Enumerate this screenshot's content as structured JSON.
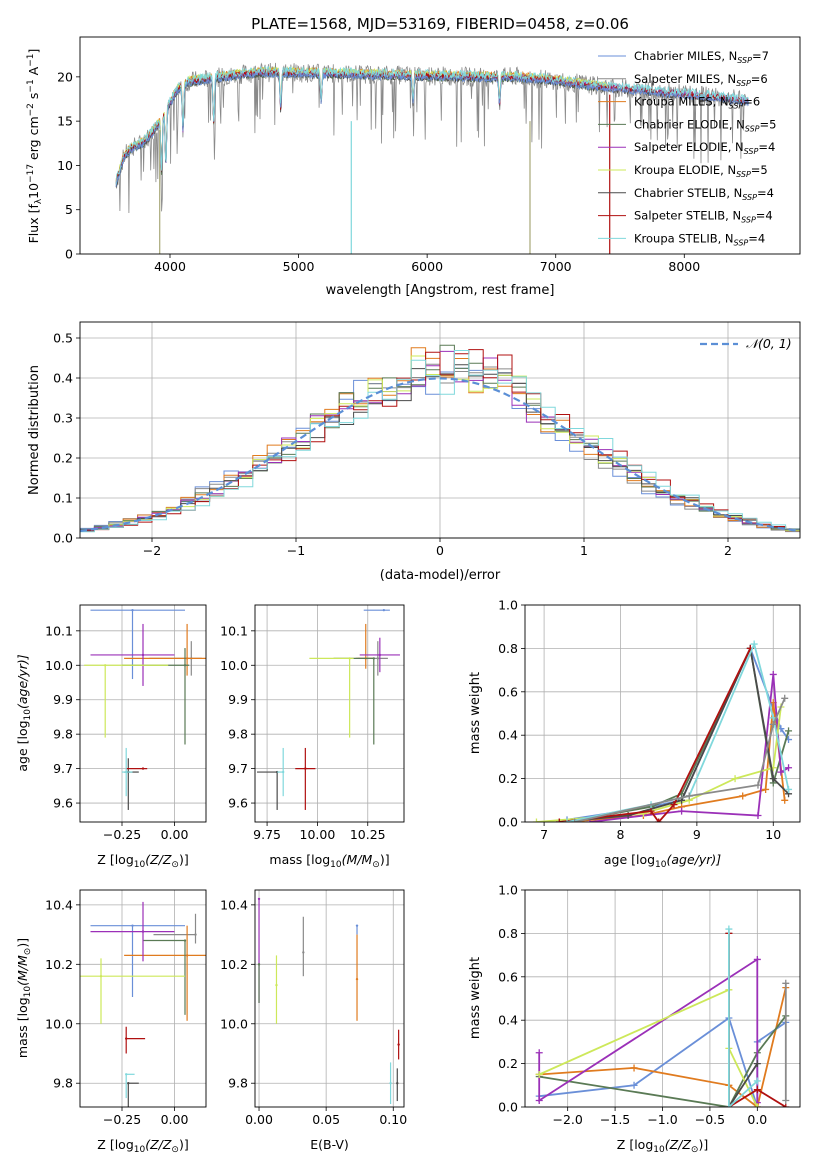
{
  "title": "PLATE=1568, MJD=53169, FIBERID=0458, z=0.06",
  "series": [
    {
      "name": "Chabrier MILES",
      "nssp": "7",
      "color": "#6a8fd8"
    },
    {
      "name": "Salpeter MILES",
      "nssp": "6",
      "color": "#8a8a8a"
    },
    {
      "name": "Kroupa MILES",
      "nssp": "6",
      "color": "#e07b1f"
    },
    {
      "name": "Chabrier ELODIE",
      "nssp": "5",
      "color": "#5a7a55"
    },
    {
      "name": "Salpeter ELODIE",
      "nssp": "4",
      "color": "#9b30b8"
    },
    {
      "name": "Kroupa ELODIE",
      "nssp": "5",
      "color": "#cde85a"
    },
    {
      "name": "Chabrier STELIB",
      "nssp": "4",
      "color": "#4a4a4a"
    },
    {
      "name": "Salpeter STELIB",
      "nssp": "4",
      "color": "#b01010"
    },
    {
      "name": "Kroupa STELIB",
      "nssp": "4",
      "color": "#80d8dc"
    }
  ],
  "nssp_label": "N",
  "nssp_sub": "SSP",
  "chart_data": [
    {
      "id": "spectrum",
      "type": "line",
      "xlabel": "wavelength [Angstrom, rest frame]",
      "ylabel_parts": [
        "Flux [f",
        "λ",
        "10",
        "−17",
        " erg cm",
        "−2",
        " s",
        "−1",
        " A",
        "−1",
        "]"
      ],
      "xlim": [
        3300,
        8900
      ],
      "ylim": [
        0,
        24.5
      ],
      "xticks": [
        4000,
        5000,
        6000,
        7000,
        8000
      ],
      "yticks": [
        0,
        5,
        10,
        15,
        20
      ],
      "continuum": [
        [
          3580,
          8
        ],
        [
          3640,
          11
        ],
        [
          3700,
          12
        ],
        [
          3780,
          12.5
        ],
        [
          3850,
          13.5
        ],
        [
          3920,
          15
        ],
        [
          3980,
          16.5
        ],
        [
          4050,
          18.5
        ],
        [
          4150,
          19.5
        ],
        [
          4300,
          19.8
        ],
        [
          4500,
          20.2
        ],
        [
          4700,
          20.5
        ],
        [
          4900,
          20.5
        ],
        [
          5200,
          20.4
        ],
        [
          5500,
          20.3
        ],
        [
          5800,
          20.2
        ],
        [
          6100,
          20.1
        ],
        [
          6400,
          20.0
        ],
        [
          6700,
          20.0
        ],
        [
          7000,
          19.6
        ],
        [
          7300,
          19.0
        ],
        [
          7600,
          18.6
        ],
        [
          7900,
          18.2
        ],
        [
          8200,
          17.8
        ],
        [
          8500,
          17.3
        ]
      ],
      "dips": [
        [
          3934,
          6
        ],
        [
          3968,
          6
        ],
        [
          4101,
          5
        ],
        [
          4340,
          5
        ],
        [
          4861,
          4
        ],
        [
          5175,
          3
        ],
        [
          5890,
          3
        ],
        [
          6563,
          3
        ]
      ],
      "spikes": [
        [
          3920,
          0,
          14
        ],
        [
          5410,
          0,
          15
        ],
        [
          6800,
          0,
          15
        ],
        [
          7420,
          0,
          18
        ]
      ],
      "grid": false,
      "legend": "upper-right"
    },
    {
      "id": "residuals",
      "type": "histogram",
      "xlabel": "(data-model)/error",
      "ylabel": "Normed distribution",
      "xlim": [
        -2.5,
        2.5
      ],
      "ylim": [
        0,
        0.54
      ],
      "xticks": [
        -2,
        -1,
        0,
        1,
        2
      ],
      "yticks": [
        0,
        0.1,
        0.2,
        0.3,
        0.4,
        0.5
      ],
      "reference": "𝒩(0, 1)",
      "bin_width": 0.1,
      "grid": true,
      "legend": "upper-right"
    },
    {
      "id": "age-vs-z",
      "type": "scatter",
      "xlabel_main": "Z [log",
      "xlabel_tail": "(Z/Z",
      "xlabel_end": ")]",
      "ylabel": "age  [log",
      "ylabel_tail": "(age/yr)]",
      "xlim": [
        -0.45,
        0.15
      ],
      "ylim": [
        9.545,
        10.175
      ],
      "xticks": [
        -0.25,
        0.0
      ],
      "yticks": [
        9.6,
        9.7,
        9.8,
        9.9,
        10.0,
        10.1
      ],
      "points": [
        {
          "x": -0.2,
          "y": 10.16,
          "xerr": [
            0.2,
            0.25
          ],
          "yerr": [
            0.2,
            0.0
          ],
          "series": 0
        },
        {
          "x": 0.08,
          "y": 10.02,
          "xerr": [
            0.2,
            0.05
          ],
          "yerr": [
            0.05,
            0.05
          ],
          "series": 1
        },
        {
          "x": 0.06,
          "y": 10.02,
          "xerr": [
            0.3,
            0.1
          ],
          "yerr": [
            0.05,
            0.1
          ],
          "series": 2
        },
        {
          "x": 0.05,
          "y": 10.0,
          "xerr": [
            0.3,
            0.02
          ],
          "yerr": [
            0.23,
            0.05
          ],
          "series": 3
        },
        {
          "x": -0.15,
          "y": 10.03,
          "xerr": [
            0.25,
            0.15
          ],
          "yerr": [
            0.09,
            0.09
          ],
          "series": 4
        },
        {
          "x": -0.33,
          "y": 10.0,
          "xerr": [
            0.1,
            0.3
          ],
          "yerr": [
            0.21,
            0.0
          ],
          "series": 5
        },
        {
          "x": -0.22,
          "y": 9.69,
          "xerr": [
            0.02,
            0.05
          ],
          "yerr": [
            0.11,
            0.04
          ],
          "series": 6
        },
        {
          "x": -0.15,
          "y": 9.7,
          "xerr": [
            0.08,
            0.02
          ],
          "yerr": [
            0.0,
            0.0
          ],
          "series": 7
        },
        {
          "x": -0.23,
          "y": 9.69,
          "xerr": [
            0.02,
            0.03
          ],
          "yerr": [
            0.07,
            0.07
          ],
          "series": 8
        }
      ],
      "grid": true
    },
    {
      "id": "age-vs-mass",
      "type": "scatter",
      "xlabel_main": "mass [log",
      "xlabel_tail": "(M/M",
      "xlabel_end": ")]",
      "xlim": [
        9.69,
        10.43
      ],
      "ylim": [
        9.545,
        10.175
      ],
      "xticks": [
        9.75,
        10.0,
        10.25
      ],
      "yticks": [
        9.6,
        9.7,
        9.8,
        9.9,
        10.0,
        10.1
      ],
      "points": [
        {
          "x": 10.33,
          "y": 10.16,
          "xerr": [
            0.1,
            0.03
          ],
          "yerr": [
            0.0,
            0.0
          ],
          "series": 0
        },
        {
          "x": 10.3,
          "y": 10.02,
          "xerr": [
            0.1,
            0.05
          ],
          "yerr": [
            0.05,
            0.05
          ],
          "series": 1
        },
        {
          "x": 10.24,
          "y": 10.02,
          "xerr": [
            0.05,
            0.04
          ],
          "yerr": [
            0.03,
            0.1
          ],
          "series": 2
        },
        {
          "x": 10.28,
          "y": 10.02,
          "xerr": [
            0.2,
            0.0
          ],
          "yerr": [
            0.25,
            0.0
          ],
          "series": 3
        },
        {
          "x": 10.31,
          "y": 10.03,
          "xerr": [
            0.1,
            0.1
          ],
          "yerr": [
            0.05,
            0.05
          ],
          "series": 4
        },
        {
          "x": 10.16,
          "y": 10.02,
          "xerr": [
            0.2,
            0.02
          ],
          "yerr": [
            0.23,
            0.0
          ],
          "series": 5
        },
        {
          "x": 9.8,
          "y": 9.69,
          "xerr": [
            0.1,
            0.0
          ],
          "yerr": [
            0.11,
            0.0
          ],
          "series": 6
        },
        {
          "x": 9.94,
          "y": 9.7,
          "xerr": [
            0.05,
            0.05
          ],
          "yerr": [
            0.12,
            0.06
          ],
          "series": 7
        },
        {
          "x": 9.83,
          "y": 9.69,
          "xerr": [
            0.03,
            0.0
          ],
          "yerr": [
            0.07,
            0.07
          ],
          "series": 8
        }
      ],
      "grid": true
    },
    {
      "id": "weight-vs-age",
      "type": "line",
      "xlabel": "age  [log",
      "xlabel_tail": "(age/yr)]",
      "ylabel": "mass weight",
      "xlim": [
        6.75,
        10.35
      ],
      "ylim": [
        0,
        1.0
      ],
      "xticks": [
        7,
        8,
        9,
        10
      ],
      "yticks": [
        0.0,
        0.2,
        0.4,
        0.6,
        0.8,
        1.0
      ],
      "lines": [
        {
          "series": 0,
          "x": [
            7.3,
            8.4,
            8.8,
            9.7,
            10.1,
            10.2
          ],
          "y": [
            0.01,
            0.07,
            0.1,
            0.8,
            0.43,
            0.38
          ]
        },
        {
          "series": 2,
          "x": [
            7.3,
            8.3,
            8.8,
            9.6,
            9.9,
            10.0,
            10.15
          ],
          "y": [
            0.0,
            0.03,
            0.07,
            0.12,
            0.15,
            0.55,
            0.1
          ]
        },
        {
          "series": 3,
          "x": [
            7.3,
            8.4,
            8.8,
            9.7,
            10.0,
            10.2
          ],
          "y": [
            0.0,
            0.07,
            0.13,
            0.8,
            0.18,
            0.42
          ]
        },
        {
          "series": 4,
          "x": [
            7.6,
            8.8,
            9.8,
            10.0,
            10.1,
            10.2
          ],
          "y": [
            0.0,
            0.05,
            0.03,
            0.68,
            0.23,
            0.25
          ]
        },
        {
          "series": 5,
          "x": [
            6.9,
            8.3,
            8.9,
            9.5,
            10.0,
            10.1
          ],
          "y": [
            0.0,
            0.04,
            0.1,
            0.2,
            0.25,
            0.53
          ]
        },
        {
          "series": 6,
          "x": [
            7.2,
            8.1,
            8.8,
            9.7,
            10.0,
            10.2
          ],
          "y": [
            0.0,
            0.03,
            0.1,
            0.8,
            0.2,
            0.13
          ]
        },
        {
          "series": 7,
          "x": [
            7.2,
            8.4,
            8.5,
            8.7,
            9.7
          ],
          "y": [
            0.0,
            0.05,
            0.0,
            0.08,
            0.8
          ]
        },
        {
          "series": 8,
          "x": [
            7.3,
            8.4,
            8.9,
            9.75,
            10.0,
            10.2
          ],
          "y": [
            0.0,
            0.08,
            0.12,
            0.82,
            0.48,
            0.15
          ]
        },
        {
          "series": 1,
          "x": [
            7.4,
            8.9,
            9.8,
            10.0,
            10.15
          ],
          "y": [
            0.0,
            0.12,
            0.17,
            0.45,
            0.57
          ]
        }
      ],
      "grid": true
    },
    {
      "id": "mass-vs-z",
      "type": "scatter",
      "xlabel_main": "Z [log",
      "xlabel_tail": "(Z/Z",
      "xlabel_end": ")]",
      "ylabel": "mass [log",
      "ylabel_tail": "(M/M",
      "ylabel_end": ")]",
      "xlim": [
        -0.45,
        0.15
      ],
      "ylim": [
        9.72,
        10.45
      ],
      "xticks": [
        -0.25,
        0.0
      ],
      "yticks": [
        9.8,
        10.0,
        10.2,
        10.4
      ],
      "points": [
        {
          "x": -0.2,
          "y": 10.33,
          "xerr": [
            0.2,
            0.25
          ],
          "yerr": [
            0.24,
            0.0
          ],
          "series": 0
        },
        {
          "x": 0.1,
          "y": 10.3,
          "xerr": [
            0.2,
            0.0
          ],
          "yerr": [
            0.03,
            0.07
          ],
          "series": 1
        },
        {
          "x": 0.06,
          "y": 10.23,
          "xerr": [
            0.3,
            0.1
          ],
          "yerr": [
            0.22,
            0.1
          ],
          "series": 2
        },
        {
          "x": 0.05,
          "y": 10.28,
          "xerr": [
            0.2,
            0.0
          ],
          "yerr": [
            0.25,
            0.0
          ],
          "series": 3
        },
        {
          "x": -0.15,
          "y": 10.31,
          "xerr": [
            0.25,
            0.15
          ],
          "yerr": [
            0.1,
            0.1
          ],
          "series": 4
        },
        {
          "x": -0.35,
          "y": 10.16,
          "xerr": [
            0.1,
            0.4
          ],
          "yerr": [
            0.16,
            0.06
          ],
          "series": 5
        },
        {
          "x": -0.22,
          "y": 9.8,
          "xerr": [
            0.0,
            0.05
          ],
          "yerr": [
            0.08,
            0.0
          ],
          "series": 6
        },
        {
          "x": -0.23,
          "y": 9.95,
          "xerr": [
            0.0,
            0.09
          ],
          "yerr": [
            0.05,
            0.04
          ],
          "series": 7
        },
        {
          "x": -0.23,
          "y": 9.83,
          "xerr": [
            0.0,
            0.04
          ],
          "yerr": [
            0.08,
            0.0
          ],
          "series": 8
        }
      ],
      "grid": true
    },
    {
      "id": "mass-vs-ebv",
      "type": "scatter",
      "xlabel": "E(B-V)",
      "xlim": [
        -0.003,
        0.108
      ],
      "ylim": [
        9.72,
        10.45
      ],
      "xticks": [
        0.0,
        0.05,
        0.1
      ],
      "xtick_labels": [
        "0.00",
        "0.05",
        "0.10"
      ],
      "yticks": [
        9.8,
        10.0,
        10.2,
        10.4
      ],
      "points": [
        {
          "x": 0.0,
          "y": 10.42,
          "yerr": [
            0.35,
            0.0
          ],
          "series": 4
        },
        {
          "x": 0.0,
          "y": 10.2,
          "yerr": [
            0.13,
            0.0
          ],
          "series": 3
        },
        {
          "x": 0.013,
          "y": 10.13,
          "yerr": [
            0.13,
            0.1
          ],
          "series": 5
        },
        {
          "x": 0.033,
          "y": 10.24,
          "yerr": [
            0.08,
            0.12
          ],
          "series": 1
        },
        {
          "x": 0.073,
          "y": 10.33,
          "yerr": [
            0.03,
            0.0
          ],
          "series": 0
        },
        {
          "x": 0.073,
          "y": 10.15,
          "yerr": [
            0.14,
            0.15
          ],
          "series": 2
        },
        {
          "x": 0.098,
          "y": 9.8,
          "yerr": [
            0.07,
            0.07
          ],
          "series": 8
        },
        {
          "x": 0.104,
          "y": 9.93,
          "yerr": [
            0.05,
            0.05
          ],
          "series": 7
        },
        {
          "x": 0.103,
          "y": 9.8,
          "yerr": [
            0.06,
            0.05
          ],
          "series": 6
        }
      ],
      "grid": true
    },
    {
      "id": "weight-vs-z",
      "type": "line",
      "xlabel_main": "Z [log",
      "xlabel_tail": "(Z/Z",
      "xlabel_end": ")]",
      "ylabel": "mass weight",
      "xlim": [
        -2.45,
        0.45
      ],
      "ylim": [
        0,
        1.0
      ],
      "xticks": [
        -2.0,
        -1.5,
        -1.0,
        -0.5,
        0.0
      ],
      "xtick_labels": [
        "−2.0",
        "−1.5",
        "−1.0",
        "−0.5",
        "0.0"
      ],
      "yticks": [
        0.0,
        0.2,
        0.4,
        0.6,
        0.8,
        1.0
      ],
      "lines": [
        {
          "series": 0,
          "x": [
            -2.3,
            -1.3,
            -0.3,
            -0.0,
            0.0,
            0.3
          ],
          "y": [
            0.05,
            0.1,
            0.41,
            0.0,
            0.3,
            0.39
          ]
        },
        {
          "series": 2,
          "x": [
            -2.3,
            -1.3,
            -0.3,
            0.0,
            0.3
          ],
          "y": [
            0.15,
            0.18,
            0.1,
            0.0,
            0.55
          ]
        },
        {
          "series": 3,
          "x": [
            -2.3,
            -0.3,
            0.0,
            0.3
          ],
          "y": [
            0.14,
            0.0,
            0.25,
            0.42
          ]
        },
        {
          "series": 4,
          "x": [
            -2.3,
            -2.3,
            0.0,
            0.0
          ],
          "y": [
            0.25,
            0.03,
            0.68,
            0.02
          ]
        },
        {
          "series": 5,
          "x": [
            -2.3,
            -0.3,
            -0.3,
            0.0
          ],
          "y": [
            0.15,
            0.54,
            0.27,
            0.0
          ]
        },
        {
          "series": 6,
          "x": [
            -0.3,
            -0.3,
            0.0
          ],
          "y": [
            0.8,
            0.0,
            0.2
          ]
        },
        {
          "series": 7,
          "x": [
            -0.3,
            -0.3,
            0.0,
            0.3
          ],
          "y": [
            0.8,
            0.0,
            0.08,
            0.0
          ]
        },
        {
          "series": 8,
          "x": [
            -0.3,
            -0.3,
            0.0
          ],
          "y": [
            0.82,
            0.0,
            0.12
          ]
        },
        {
          "series": 1,
          "x": [
            0.3,
            0.3
          ],
          "y": [
            0.57,
            0.03
          ]
        }
      ],
      "grid": true
    }
  ],
  "sub": {
    "ten": "10",
    "sun": "⊙"
  }
}
